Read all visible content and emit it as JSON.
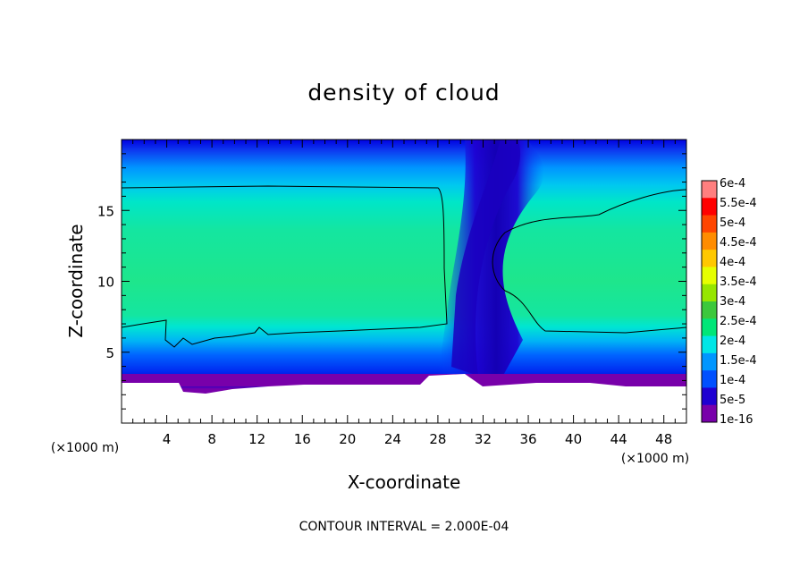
{
  "chart_data": {
    "type": "heatmap",
    "title": "density of cloud",
    "xlabel": "X-coordinate",
    "ylabel": "Z-coordinate",
    "x_unit": "(×1000 m)",
    "y_unit": "(×1000 m)",
    "xlim": [
      0,
      50
    ],
    "ylim": [
      0,
      20
    ],
    "x_ticks": [
      "4",
      "8",
      "12",
      "16",
      "20",
      "24",
      "28",
      "32",
      "36",
      "40",
      "44",
      "48"
    ],
    "y_ticks": [
      "5",
      "10",
      "15"
    ],
    "contour_interval_text": "CONTOUR INTERVAL = 2.000E-04",
    "colorbar": {
      "labels": [
        "6e-4",
        "5.5e-4",
        "5e-4",
        "4.5e-4",
        "4e-4",
        "3.5e-4",
        "3e-4",
        "2.5e-4",
        "2e-4",
        "1.5e-4",
        "1e-4",
        "5e-5",
        "1e-16"
      ],
      "colors": [
        "#ff7f7f",
        "#ff0000",
        "#ff4500",
        "#ff8c00",
        "#ffc800",
        "#e6ff00",
        "#96e600",
        "#3cc83c",
        "#00e678",
        "#00e6e6",
        "#0096ff",
        "#0050ff",
        "#1e00d2",
        "#7800aa"
      ]
    },
    "regions": [
      {
        "name": "left cloud layer",
        "x_range": [
          0,
          29
        ],
        "z_range": [
          6.5,
          16.5
        ],
        "level": "2e-4 to 2.5e-4"
      },
      {
        "name": "right cloud layer",
        "x_range": [
          34,
          50
        ],
        "z_range": [
          6.5,
          16.5
        ],
        "level": "2e-4 to 2.5e-4"
      },
      {
        "name": "cloud-free gap",
        "x_range": [
          29,
          34
        ],
        "z_range": [
          3,
          20
        ],
        "level": "below 1e-4"
      },
      {
        "name": "cloud base",
        "x_range": [
          0,
          50
        ],
        "z_range": [
          2.8,
          3.5
        ],
        "level": "1e-16"
      }
    ]
  }
}
